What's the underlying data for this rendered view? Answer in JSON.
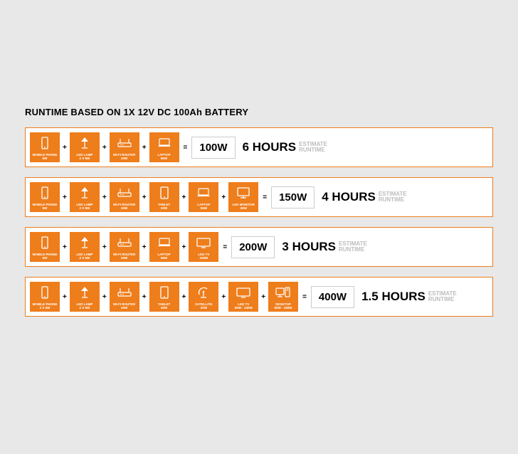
{
  "title": "RUNTIME BASED ON 1X 12V DC 100Ah BATTERY",
  "estimate_label": "ESTIMATE\nRUNTIME",
  "colors": {
    "accent": "#ee7d1b",
    "page_bg": "#e8e8e8",
    "card_bg": "#ffffff",
    "text": "#000000",
    "muted": "#bdbdbd"
  },
  "icons": {
    "phone": "<svg width='12' height='18' viewBox='0 0 12 18'><rect x='2' y='1' width='8' height='16' rx='1.2' fill='none' stroke='#fff' stroke-width='1.3'/><circle cx='6' cy='15' r='0.9' fill='#fff'/></svg>",
    "lamp": "<svg width='16' height='18' viewBox='0 0 16 18'><path d='M3 7 L8 1 L13 7 Z' fill='#fff'/><line x1='8' y1='7' x2='8' y2='15' stroke='#fff' stroke-width='1.3'/><line x1='4' y1='16' x2='12' y2='16' stroke='#fff' stroke-width='1.3'/></svg>",
    "router": "<svg width='22' height='16' viewBox='0 0 22 16'><rect x='2' y='8' width='18' height='5' rx='1' fill='none' stroke='#fff' stroke-width='1.2'/><line x1='5' y1='8' x2='5' y2='2' stroke='#fff' stroke-width='1.2'/><line x1='17' y1='8' x2='17' y2='2' stroke='#fff' stroke-width='1.2'/><circle cx='6' cy='10.5' r='0.8' fill='#fff'/><circle cx='9' cy='10.5' r='0.8' fill='#fff'/></svg>",
    "laptop": "<svg width='22' height='16' viewBox='0 0 22 16'><rect x='4' y='2' width='14' height='9' rx='1' fill='none' stroke='#fff' stroke-width='1.2'/><path d='M2 13 L20 13 L18 11 L4 11 Z' fill='#fff'/></svg>",
    "tablet": "<svg width='14' height='18' viewBox='0 0 14 18'><rect x='2' y='1' width='10' height='16' rx='1.2' fill='none' stroke='#fff' stroke-width='1.3'/><circle cx='7' cy='15' r='0.9' fill='#fff'/></svg>",
    "monitor": "<svg width='20' height='18' viewBox='0 0 20 18'><rect x='2' y='2' width='16' height='11' rx='1' fill='none' stroke='#fff' stroke-width='1.3'/><line x1='10' y1='13' x2='10' y2='16' stroke='#fff' stroke-width='1.3'/><line x1='6' y1='16' x2='14' y2='16' stroke='#fff' stroke-width='1.3'/></svg>",
    "tv": "<svg width='22' height='16' viewBox='0 0 22 16'><rect x='2' y='2' width='18' height='11' rx='1' fill='none' stroke='#fff' stroke-width='1.3'/><line x1='8' y1='15' x2='14' y2='15' stroke='#fff' stroke-width='1.3'/></svg>",
    "satellite": "<svg width='18' height='18' viewBox='0 0 18 18'><path d='M3 12 A7 7 0 0 1 14 4' fill='none' stroke='#fff' stroke-width='1.3'/><circle cx='9' cy='8' r='1.2' fill='#fff'/><line x1='9' y1='9' x2='9' y2='15' stroke='#fff' stroke-width='1.3'/><line x1='5' y1='16' x2='13' y2='16' stroke='#fff' stroke-width='1.3'/></svg>",
    "desktop": "<svg width='22' height='18' viewBox='0 0 22 18'><rect x='1' y='3' width='11' height='9' rx='1' fill='none' stroke='#fff' stroke-width='1.2'/><line x1='6.5' y1='12' x2='6.5' y2='15' stroke='#fff' stroke-width='1.2'/><line x1='3' y1='15' x2='10' y2='15' stroke='#fff' stroke-width='1.2'/><rect x='14' y='2' width='6' height='13' rx='1' fill='none' stroke='#fff' stroke-width='1.2'/><line x1='15.5' y1='4' x2='18.5' y2='4' stroke='#fff' stroke-width='1'/><line x1='15.5' y1='6' x2='18.5' y2='6' stroke='#fff' stroke-width='1'/></svg>"
  },
  "rows": [
    {
      "devices": [
        {
          "icon": "phone",
          "label": "MOBILE PHONE\n5W"
        },
        {
          "icon": "lamp",
          "label": "LED LAMP\n2 X 5W"
        },
        {
          "icon": "router",
          "label": "WI-FI ROUTER\n20W"
        },
        {
          "icon": "laptop",
          "label": "LAPTOP\n55W"
        }
      ],
      "total_watts": "100W",
      "hours": "6 HOURS"
    },
    {
      "devices": [
        {
          "icon": "phone",
          "label": "MOBILE PHONE\n5W"
        },
        {
          "icon": "lamp",
          "label": "LED LAMP\n2 X 5W"
        },
        {
          "icon": "router",
          "label": "WI-FI ROUTER\n20W"
        },
        {
          "icon": "tablet",
          "label": "TABLET\n20W"
        },
        {
          "icon": "laptop",
          "label": "LAPTOP\n55W"
        },
        {
          "icon": "monitor",
          "label": "LED MONITOR\n30W"
        }
      ],
      "total_watts": "150W",
      "hours": "4 HOURS"
    },
    {
      "devices": [
        {
          "icon": "phone",
          "label": "MOBILE PHONE\n5W"
        },
        {
          "icon": "lamp",
          "label": "LED LAMP\n2 X 5W"
        },
        {
          "icon": "router",
          "label": "WI-FI ROUTER\n20W"
        },
        {
          "icon": "laptop",
          "label": "LAPTOP\n55W"
        },
        {
          "icon": "tv",
          "label": "LED TV\n100W"
        }
      ],
      "total_watts": "200W",
      "hours": "3 HOURS"
    },
    {
      "devices": [
        {
          "icon": "phone",
          "label": "MOBILE PHONE\n2 X 5W"
        },
        {
          "icon": "lamp",
          "label": "LED LAMP\n2 X 5W"
        },
        {
          "icon": "router",
          "label": "WI-FI ROUTER\n20W"
        },
        {
          "icon": "tablet",
          "label": "TABLET\n20W"
        },
        {
          "icon": "satellite",
          "label": "SATELLITE\n20W"
        },
        {
          "icon": "tv",
          "label": "LED TV\n50W - 130W"
        },
        {
          "icon": "desktop",
          "label": "DESKTOP\n50W - 150W"
        }
      ],
      "total_watts": "400W",
      "hours": "1.5 HOURS"
    }
  ]
}
